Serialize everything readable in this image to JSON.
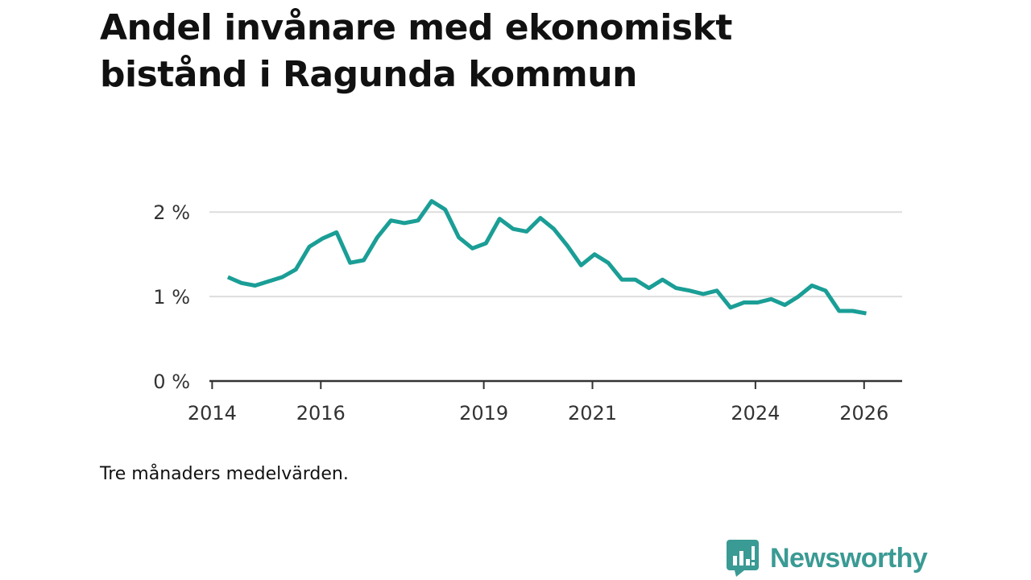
{
  "header": {
    "title": "Andel invånare med ekonomiskt bistånd i Ragunda kommun"
  },
  "footer": {
    "note": "Tre månaders medelvärden.",
    "brand": "Newsworthy"
  },
  "colors": {
    "line": "#1a9e96",
    "grid": "#dddddd",
    "axis": "#333333",
    "brand": "#3a9a94"
  },
  "chart_data": {
    "type": "line",
    "title": "Andel invånare med ekonomiskt bistånd i Ragunda kommun",
    "xlabel": "",
    "ylabel": "",
    "xlim": [
      2013.95,
      2026.7
    ],
    "ylim": [
      0,
      2.05
    ],
    "y_ticks": [
      {
        "value": 0,
        "label": "0 %"
      },
      {
        "value": 1,
        "label": "1 %"
      },
      {
        "value": 2,
        "label": "2 %"
      }
    ],
    "x_ticks": [
      {
        "value": 2014,
        "label": "2014"
      },
      {
        "value": 2016,
        "label": "2016"
      },
      {
        "value": 2019,
        "label": "2019"
      },
      {
        "value": 2021,
        "label": "2021"
      },
      {
        "value": 2024,
        "label": "2024"
      },
      {
        "value": 2026,
        "label": "2026"
      }
    ],
    "grid": true,
    "series": [
      {
        "name": "Andel invånare med ekonomiskt bistånd",
        "x": [
          2014.29,
          2014.54,
          2014.79,
          2015.04,
          2015.29,
          2015.54,
          2015.79,
          2016.04,
          2016.29,
          2016.54,
          2016.79,
          2017.04,
          2017.29,
          2017.54,
          2017.79,
          2018.04,
          2018.29,
          2018.54,
          2018.79,
          2019.04,
          2019.29,
          2019.54,
          2019.79,
          2020.04,
          2020.29,
          2020.54,
          2020.79,
          2021.04,
          2021.29,
          2021.54,
          2021.79,
          2022.04,
          2022.29,
          2022.54,
          2022.79,
          2023.04,
          2023.29,
          2023.54,
          2023.79,
          2024.04,
          2024.29,
          2024.54,
          2024.79,
          2025.04,
          2025.29,
          2025.54,
          2025.79,
          2026.04
        ],
        "y": [
          1.23,
          1.16,
          1.13,
          1.18,
          1.23,
          1.32,
          1.59,
          1.69,
          1.76,
          1.4,
          1.43,
          1.7,
          1.9,
          1.87,
          1.9,
          2.13,
          2.03,
          1.7,
          1.57,
          1.63,
          1.92,
          1.8,
          1.77,
          1.93,
          1.8,
          1.6,
          1.37,
          1.5,
          1.4,
          1.2,
          1.2,
          1.1,
          1.2,
          1.1,
          1.07,
          1.03,
          1.07,
          0.87,
          0.93,
          0.93,
          0.97,
          0.9,
          1.0,
          1.13,
          1.07,
          0.83,
          0.83,
          0.8
        ]
      }
    ]
  }
}
